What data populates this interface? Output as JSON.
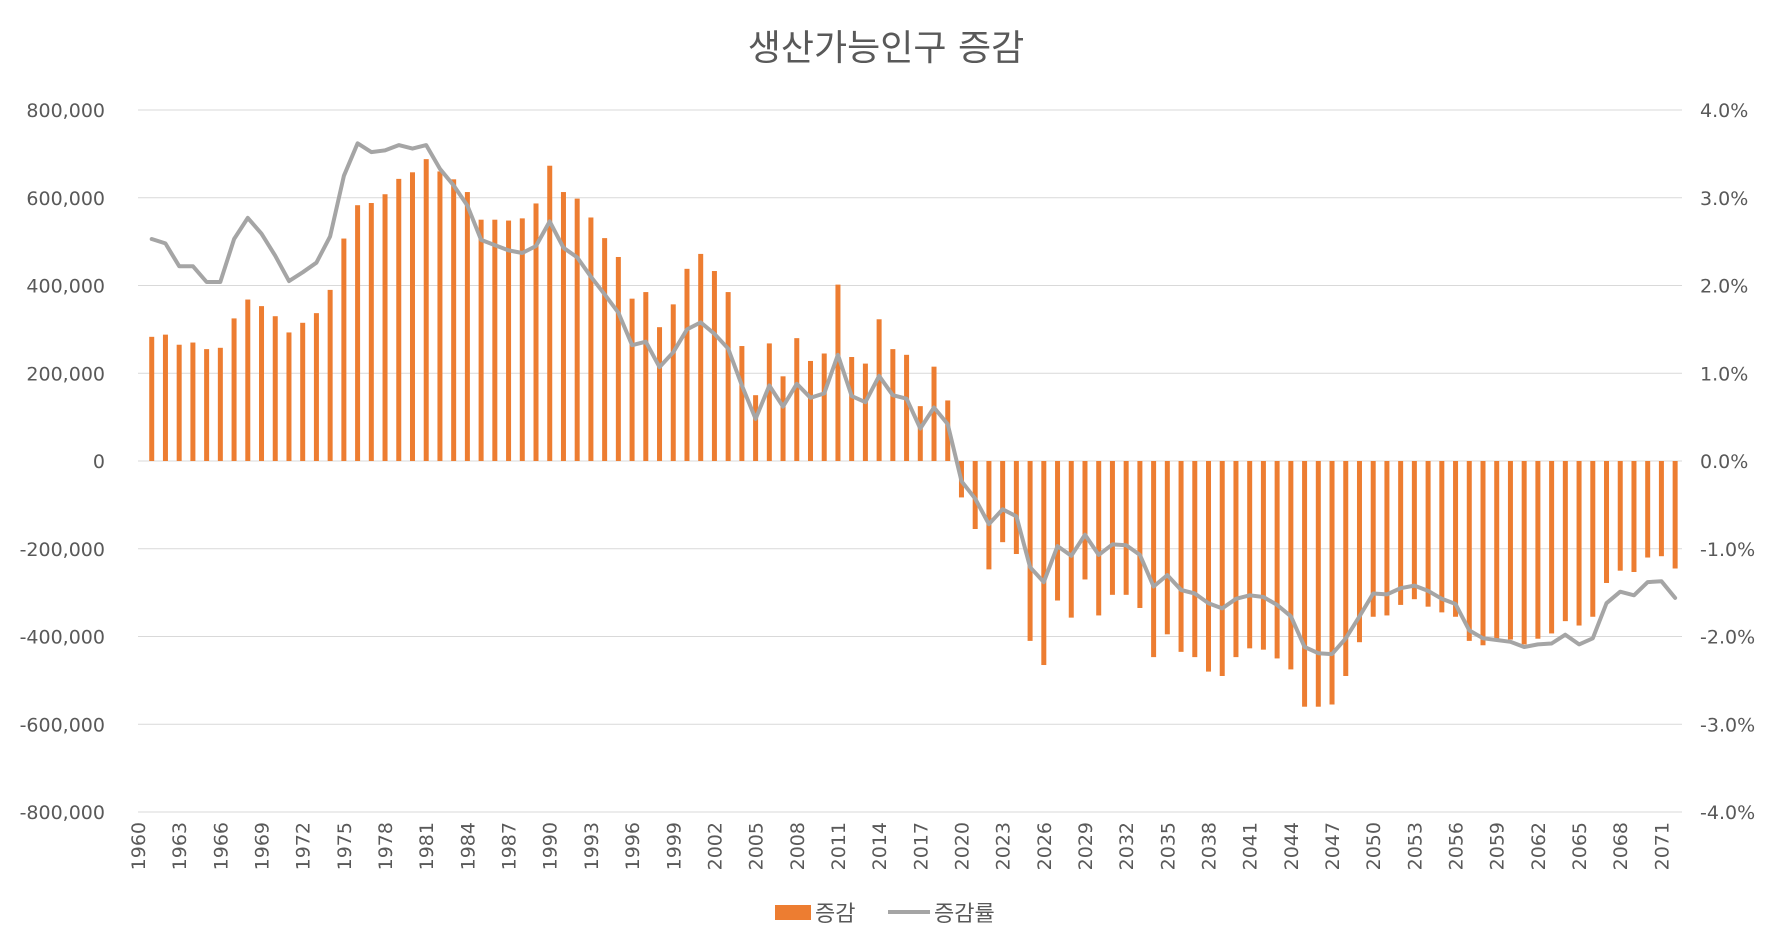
{
  "chart_data": {
    "type": "bar",
    "title": "생산가능인구 증감",
    "xlabel": "",
    "ylabel": "",
    "x_tick_labels": [
      "1960",
      "1963",
      "1966",
      "1969",
      "1972",
      "1975",
      "1978",
      "1981",
      "1984",
      "1987",
      "1990",
      "1993",
      "1996",
      "1999",
      "2002",
      "2005",
      "2008",
      "2011",
      "2014",
      "2017",
      "2020",
      "2023",
      "2026",
      "2029",
      "2032",
      "2035",
      "2038",
      "2041",
      "2044",
      "2047",
      "2050",
      "2053",
      "2056",
      "2059",
      "2062",
      "2065",
      "2068",
      "2071"
    ],
    "y_left_ticks": [
      "800,000",
      "600,000",
      "400,000",
      "200,000",
      "0",
      "-200,000",
      "-400,000",
      "-600,000",
      "-800,000"
    ],
    "y_right_ticks": [
      "4.0%",
      "3.0%",
      "2.0%",
      "1.0%",
      "0.0%",
      "-1.0%",
      "-2.0%",
      "-3.0%",
      "-4.0%"
    ],
    "ylim_left": [
      -800000,
      800000
    ],
    "ylim_right": [
      -4.0,
      4.0
    ],
    "grid": true,
    "legend_position": "bottom",
    "x": [
      1961,
      1962,
      1963,
      1964,
      1965,
      1966,
      1967,
      1968,
      1969,
      1970,
      1971,
      1972,
      1973,
      1974,
      1975,
      1976,
      1977,
      1978,
      1979,
      1980,
      1981,
      1982,
      1983,
      1984,
      1985,
      1986,
      1987,
      1988,
      1989,
      1990,
      1991,
      1992,
      1993,
      1994,
      1995,
      1996,
      1997,
      1998,
      1999,
      2000,
      2001,
      2002,
      2003,
      2004,
      2005,
      2006,
      2007,
      2008,
      2009,
      2010,
      2011,
      2012,
      2013,
      2014,
      2015,
      2016,
      2017,
      2018,
      2019,
      2020,
      2021,
      2022,
      2023,
      2024,
      2025,
      2026,
      2027,
      2028,
      2029,
      2030,
      2031,
      2032,
      2033,
      2034,
      2035,
      2036,
      2037,
      2038,
      2039,
      2040,
      2041,
      2042,
      2043,
      2044,
      2045,
      2046,
      2047,
      2048,
      2049,
      2050,
      2051,
      2052,
      2053,
      2054,
      2055,
      2056,
      2057,
      2058,
      2059,
      2060,
      2061,
      2062,
      2063,
      2064,
      2065,
      2066,
      2067,
      2068,
      2069,
      2070,
      2071,
      2072
    ],
    "series": [
      {
        "name": "증감",
        "type": "bar",
        "axis": "left",
        "color": "#ed7d31",
        "values": [
          283000,
          288000,
          265000,
          270000,
          255000,
          258000,
          325000,
          368000,
          353000,
          330000,
          293000,
          315000,
          337000,
          390000,
          507000,
          583000,
          588000,
          608000,
          643000,
          658000,
          688000,
          660000,
          642000,
          613000,
          550000,
          550000,
          548000,
          553000,
          587000,
          673000,
          613000,
          598000,
          555000,
          508000,
          465000,
          370000,
          385000,
          305000,
          357000,
          438000,
          472000,
          433000,
          385000,
          262000,
          150000,
          268000,
          193000,
          280000,
          228000,
          245000,
          402000,
          237000,
          222000,
          323000,
          255000,
          242000,
          125000,
          215000,
          138000,
          -83000,
          -155000,
          -247000,
          -185000,
          -212000,
          -410000,
          -465000,
          -318000,
          -357000,
          -270000,
          -352000,
          -305000,
          -305000,
          -335000,
          -447000,
          -395000,
          -435000,
          -447000,
          -480000,
          -490000,
          -447000,
          -427000,
          -430000,
          -450000,
          -475000,
          -560000,
          -560000,
          -555000,
          -490000,
          -413000,
          -355000,
          -352000,
          -328000,
          -315000,
          -332000,
          -345000,
          -355000,
          -410000,
          -420000,
          -410000,
          -407000,
          -418000,
          -405000,
          -393000,
          -365000,
          -375000,
          -355000,
          -278000,
          -250000,
          -253000,
          -220000,
          -217000,
          -245000
        ]
      },
      {
        "name": "증감률",
        "type": "line",
        "axis": "right",
        "color": "#a5a5a5",
        "values": [
          2.53,
          2.48,
          2.22,
          2.22,
          2.04,
          2.04,
          2.53,
          2.77,
          2.59,
          2.34,
          2.05,
          2.15,
          2.26,
          2.56,
          3.25,
          3.62,
          3.52,
          3.54,
          3.6,
          3.56,
          3.6,
          3.33,
          3.14,
          2.91,
          2.52,
          2.46,
          2.4,
          2.37,
          2.45,
          2.73,
          2.43,
          2.32,
          2.1,
          1.9,
          1.69,
          1.32,
          1.36,
          1.07,
          1.24,
          1.5,
          1.58,
          1.45,
          1.28,
          0.86,
          0.48,
          0.86,
          0.62,
          0.88,
          0.72,
          0.77,
          1.21,
          0.74,
          0.67,
          0.97,
          0.75,
          0.71,
          0.37,
          0.61,
          0.42,
          -0.23,
          -0.43,
          -0.72,
          -0.55,
          -0.63,
          -1.21,
          -1.38,
          -0.97,
          -1.08,
          -0.84,
          -1.07,
          -0.95,
          -0.96,
          -1.07,
          -1.43,
          -1.3,
          -1.47,
          -1.51,
          -1.62,
          -1.68,
          -1.57,
          -1.53,
          -1.55,
          -1.64,
          -1.77,
          -2.12,
          -2.19,
          -2.2,
          -2.02,
          -1.77,
          -1.51,
          -1.52,
          -1.45,
          -1.42,
          -1.48,
          -1.57,
          -1.63,
          -1.93,
          -2.02,
          -2.04,
          -2.06,
          -2.12,
          -2.09,
          -2.08,
          -1.98,
          -2.09,
          -2.02,
          -1.62,
          -1.49,
          -1.53,
          -1.38,
          -1.37,
          -1.56
        ]
      }
    ]
  }
}
